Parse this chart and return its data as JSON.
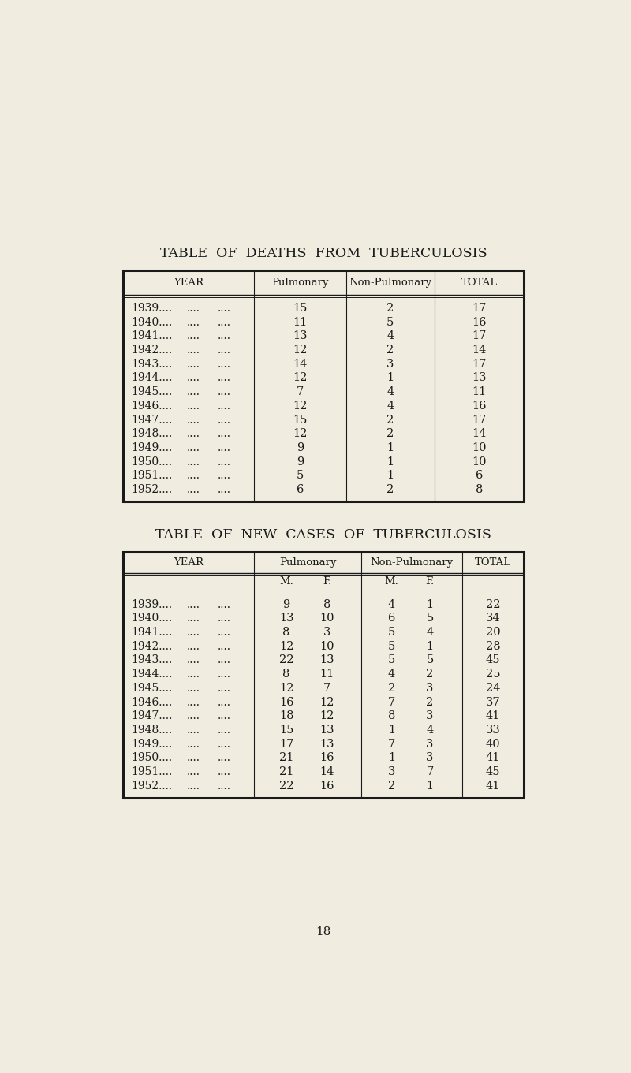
{
  "bg_color": "#f0ece0",
  "title1": "TABLE  OF  DEATHS  FROM  TUBERCULOSIS",
  "title2": "TABLE  OF  NEW  CASES  OF  TUBERCULOSIS",
  "deaths_years": [
    "1939",
    "1940",
    "1941",
    "1942",
    "1943",
    "1944",
    "1945",
    "1946",
    "1947",
    "1948",
    "1949",
    "1950",
    "1951",
    "1952"
  ],
  "deaths_pulmonary": [
    15,
    11,
    13,
    12,
    14,
    12,
    7,
    12,
    15,
    12,
    9,
    9,
    5,
    6
  ],
  "deaths_nonpulmonary": [
    2,
    5,
    4,
    2,
    3,
    1,
    4,
    4,
    2,
    2,
    1,
    1,
    1,
    2
  ],
  "deaths_total": [
    17,
    16,
    17,
    14,
    17,
    13,
    11,
    16,
    17,
    14,
    10,
    10,
    6,
    8
  ],
  "cases_years": [
    "1939",
    "1940",
    "1941",
    "1942",
    "1943",
    "1944",
    "1945",
    "1946",
    "1947",
    "1948",
    "1949",
    "1950",
    "1951",
    "1952"
  ],
  "cases_pulm_m": [
    9,
    13,
    8,
    12,
    22,
    8,
    12,
    16,
    18,
    15,
    17,
    21,
    21,
    22
  ],
  "cases_pulm_f": [
    8,
    10,
    3,
    10,
    13,
    11,
    7,
    12,
    12,
    13,
    13,
    16,
    14,
    16
  ],
  "cases_nonpulm_m": [
    4,
    6,
    5,
    5,
    5,
    4,
    2,
    7,
    8,
    1,
    7,
    1,
    3,
    2
  ],
  "cases_nonpulm_f": [
    1,
    5,
    4,
    1,
    5,
    2,
    3,
    2,
    3,
    4,
    3,
    3,
    7,
    1
  ],
  "cases_total": [
    22,
    34,
    20,
    28,
    45,
    25,
    24,
    37,
    41,
    33,
    40,
    41,
    45,
    41
  ],
  "page_number": "18",
  "text_color": "#1a1a1a",
  "line_color": "#1a1a1a"
}
